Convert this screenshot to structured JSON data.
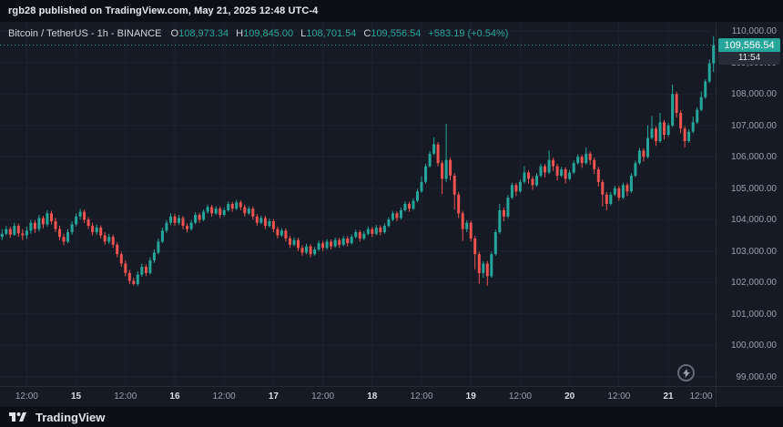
{
  "topbar": {
    "text": "rgb28 published on TradingView.com, May 21, 2025 12:48 UTC-4"
  },
  "legend": {
    "title": "Bitcoin / TetherUS - 1h - BINANCE",
    "o_label": "O",
    "o_value": "108,973.34",
    "h_label": "H",
    "h_value": "109,845.00",
    "l_label": "L",
    "l_value": "108,701.54",
    "c_label": "C",
    "c_value": "109,556.54",
    "change": "+583.19 (+0.54%)"
  },
  "price_badge": {
    "price": "109,556.54",
    "countdown": "11:54"
  },
  "logo": {
    "text": "TradingView"
  },
  "chart_data": {
    "type": "candlestick",
    "symbol": "Bitcoin / TetherUS",
    "interval": "1h",
    "exchange": "BINANCE",
    "last": {
      "open": 108973.34,
      "high": 109845.0,
      "low": 108701.54,
      "close": 109556.54,
      "change": 583.19,
      "change_pct": 0.54
    },
    "y_range": [
      98700,
      110300
    ],
    "colors": {
      "up": "#26a69a",
      "down": "#ef5350",
      "grid": "#1e2330",
      "background": "#151a25",
      "panel": "#0c0f16",
      "text_muted": "#9aa0ab",
      "text_bright": "#dadde2"
    },
    "y_ticks": [
      {
        "value": 110000,
        "label": "110,000.00"
      },
      {
        "value": 109000,
        "label": "109,000.00"
      },
      {
        "value": 108000,
        "label": "108,000.00"
      },
      {
        "value": 107000,
        "label": "107,000.00"
      },
      {
        "value": 106000,
        "label": "106,000.00"
      },
      {
        "value": 105000,
        "label": "105,000.00"
      },
      {
        "value": 104000,
        "label": "104,000.00"
      },
      {
        "value": 103000,
        "label": "103,000.00"
      },
      {
        "value": 102000,
        "label": "102,000.00"
      },
      {
        "value": 101000,
        "label": "101,000.00"
      },
      {
        "value": 100000,
        "label": "100,000.00"
      },
      {
        "value": 99000,
        "label": "99,000.00"
      }
    ],
    "x_ticks": [
      {
        "label": "12:00",
        "i": 6,
        "major": false
      },
      {
        "label": "15",
        "i": 18,
        "major": true
      },
      {
        "label": "12:00",
        "i": 30,
        "major": false
      },
      {
        "label": "16",
        "i": 42,
        "major": true
      },
      {
        "label": "12:00",
        "i": 54,
        "major": false
      },
      {
        "label": "17",
        "i": 66,
        "major": true
      },
      {
        "label": "12:00",
        "i": 78,
        "major": false
      },
      {
        "label": "18",
        "i": 90,
        "major": true
      },
      {
        "label": "12:00",
        "i": 102,
        "major": false
      },
      {
        "label": "19",
        "i": 114,
        "major": true
      },
      {
        "label": "12:00",
        "i": 126,
        "major": false
      },
      {
        "label": "20",
        "i": 138,
        "major": true
      },
      {
        "label": "12:00",
        "i": 150,
        "major": false
      },
      {
        "label": "21",
        "i": 162,
        "major": true
      },
      {
        "label": "12:00",
        "i": 174,
        "major": false
      }
    ],
    "candles": [
      [
        103450,
        103700,
        103350,
        103550
      ],
      [
        103550,
        103800,
        103500,
        103700
      ],
      [
        103700,
        103780,
        103420,
        103520
      ],
      [
        103520,
        103900,
        103480,
        103800
      ],
      [
        103800,
        103880,
        103450,
        103560
      ],
      [
        103560,
        103700,
        103350,
        103500
      ],
      [
        103500,
        103780,
        103380,
        103650
      ],
      [
        103650,
        104000,
        103550,
        103900
      ],
      [
        103900,
        103980,
        103580,
        103700
      ],
      [
        103700,
        104150,
        103620,
        104050
      ],
      [
        104050,
        104120,
        103720,
        103850
      ],
      [
        103850,
        104300,
        103780,
        104200
      ],
      [
        104200,
        104280,
        103850,
        103950
      ],
      [
        103950,
        104050,
        103600,
        103700
      ],
      [
        103700,
        103800,
        103350,
        103450
      ],
      [
        103450,
        103550,
        103180,
        103300
      ],
      [
        103300,
        103700,
        103250,
        103600
      ],
      [
        103600,
        103950,
        103520,
        103850
      ],
      [
        103850,
        104200,
        103780,
        104100
      ],
      [
        104100,
        104350,
        104000,
        104250
      ],
      [
        104250,
        104320,
        103900,
        104000
      ],
      [
        104000,
        104080,
        103700,
        103800
      ],
      [
        103800,
        103900,
        103500,
        103600
      ],
      [
        103600,
        103850,
        103520,
        103750
      ],
      [
        103750,
        103820,
        103400,
        103500
      ],
      [
        103500,
        103600,
        103200,
        103300
      ],
      [
        103300,
        103550,
        103220,
        103450
      ],
      [
        103450,
        103520,
        103100,
        103200
      ],
      [
        103200,
        103280,
        102800,
        102900
      ],
      [
        102900,
        102980,
        102500,
        102600
      ],
      [
        102600,
        102700,
        102200,
        102300
      ],
      [
        102300,
        102400,
        101950,
        102050
      ],
      [
        102050,
        102150,
        101900,
        101950
      ],
      [
        101950,
        102350,
        101880,
        102250
      ],
      [
        102250,
        102600,
        102180,
        102500
      ],
      [
        102500,
        102580,
        102200,
        102300
      ],
      [
        102300,
        102800,
        102250,
        102700
      ],
      [
        102700,
        103050,
        102620,
        102950
      ],
      [
        102950,
        103400,
        102900,
        103300
      ],
      [
        103300,
        103750,
        103250,
        103650
      ],
      [
        103650,
        103980,
        103580,
        103900
      ],
      [
        103900,
        104200,
        103820,
        104100
      ],
      [
        104100,
        104180,
        103800,
        103900
      ],
      [
        103900,
        104150,
        103830,
        104050
      ],
      [
        104050,
        104120,
        103700,
        103800
      ],
      [
        103800,
        103880,
        103600,
        103700
      ],
      [
        103700,
        103980,
        103650,
        103900
      ],
      [
        103900,
        104230,
        103850,
        104150
      ],
      [
        104150,
        104220,
        103900,
        104000
      ],
      [
        104000,
        104330,
        103950,
        104250
      ],
      [
        104250,
        104480,
        104180,
        104400
      ],
      [
        104400,
        104470,
        104100,
        104200
      ],
      [
        104200,
        104430,
        104150,
        104350
      ],
      [
        104350,
        104420,
        104050,
        104150
      ],
      [
        104150,
        104380,
        104100,
        104300
      ],
      [
        104300,
        104580,
        104250,
        104500
      ],
      [
        104500,
        104570,
        104250,
        104350
      ],
      [
        104350,
        104630,
        104300,
        104550
      ],
      [
        104550,
        104620,
        104300,
        104400
      ],
      [
        104400,
        104480,
        104100,
        104200
      ],
      [
        104200,
        104430,
        104150,
        104350
      ],
      [
        104350,
        104420,
        104000,
        104100
      ],
      [
        104100,
        104180,
        103800,
        103900
      ],
      [
        103900,
        104130,
        103850,
        104050
      ],
      [
        104050,
        104120,
        103700,
        103800
      ],
      [
        103800,
        104030,
        103750,
        103950
      ],
      [
        103950,
        104020,
        103600,
        103700
      ],
      [
        103700,
        103780,
        103400,
        103500
      ],
      [
        103500,
        103730,
        103450,
        103650
      ],
      [
        103650,
        103720,
        103300,
        103400
      ],
      [
        103400,
        103480,
        103100,
        103200
      ],
      [
        103200,
        103430,
        103150,
        103350
      ],
      [
        103350,
        103420,
        103000,
        103100
      ],
      [
        103100,
        103180,
        102850,
        102950
      ],
      [
        102950,
        103230,
        102900,
        103150
      ],
      [
        103150,
        103220,
        102800,
        102900
      ],
      [
        102900,
        103130,
        102850,
        103050
      ],
      [
        103050,
        103330,
        103000,
        103250
      ],
      [
        103250,
        103320,
        103000,
        103100
      ],
      [
        103100,
        103380,
        103050,
        103300
      ],
      [
        103300,
        103370,
        103050,
        103150
      ],
      [
        103150,
        103430,
        103100,
        103350
      ],
      [
        103350,
        103420,
        103100,
        103200
      ],
      [
        103200,
        103480,
        103150,
        103400
      ],
      [
        103400,
        103470,
        103150,
        103250
      ],
      [
        103250,
        103530,
        103200,
        103450
      ],
      [
        103450,
        103680,
        103400,
        103600
      ],
      [
        103600,
        103670,
        103300,
        103400
      ],
      [
        103400,
        103630,
        103350,
        103550
      ],
      [
        103550,
        103780,
        103500,
        103700
      ],
      [
        103700,
        103770,
        103450,
        103550
      ],
      [
        103550,
        103830,
        103500,
        103750
      ],
      [
        103750,
        103820,
        103500,
        103600
      ],
      [
        103600,
        103880,
        103550,
        103800
      ],
      [
        103800,
        104080,
        103750,
        104000
      ],
      [
        104000,
        104280,
        103950,
        104200
      ],
      [
        104200,
        104270,
        103950,
        104050
      ],
      [
        104050,
        104380,
        104000,
        104300
      ],
      [
        104300,
        104580,
        104250,
        104500
      ],
      [
        104500,
        104570,
        104250,
        104350
      ],
      [
        104350,
        104680,
        104300,
        104600
      ],
      [
        104600,
        104980,
        104550,
        104900
      ],
      [
        104900,
        105380,
        104850,
        105200
      ],
      [
        105200,
        105780,
        105150,
        105700
      ],
      [
        105700,
        106180,
        105650,
        106100
      ],
      [
        106100,
        106620,
        106050,
        106400
      ],
      [
        106400,
        106470,
        105700,
        105800
      ],
      [
        105800,
        105880,
        104820,
        105300
      ],
      [
        105300,
        107050,
        105200,
        105900
      ],
      [
        105900,
        105970,
        105250,
        105400
      ],
      [
        105400,
        105480,
        104320,
        104800
      ],
      [
        104800,
        104880,
        104050,
        104200
      ],
      [
        104200,
        104280,
        103320,
        103700
      ],
      [
        103700,
        103980,
        103600,
        103900
      ],
      [
        103900,
        103970,
        103300,
        103400
      ],
      [
        103400,
        103480,
        102420,
        102900
      ],
      [
        102900,
        102980,
        101960,
        102300
      ],
      [
        102300,
        102680,
        102150,
        102600
      ],
      [
        102600,
        102680,
        101900,
        102200
      ],
      [
        102200,
        102980,
        102150,
        102900
      ],
      [
        102900,
        103680,
        102850,
        103600
      ],
      [
        103600,
        104500,
        103550,
        104300
      ],
      [
        104300,
        104380,
        103950,
        104100
      ],
      [
        104100,
        104780,
        104050,
        104700
      ],
      [
        104700,
        105180,
        104650,
        105100
      ],
      [
        105100,
        105170,
        104750,
        104900
      ],
      [
        104900,
        105280,
        104850,
        105200
      ],
      [
        105200,
        105700,
        105150,
        105500
      ],
      [
        105500,
        105570,
        105150,
        105300
      ],
      [
        105300,
        105380,
        104950,
        105100
      ],
      [
        105100,
        105480,
        105050,
        105400
      ],
      [
        105400,
        105780,
        105350,
        105700
      ],
      [
        105700,
        105770,
        105350,
        105500
      ],
      [
        105500,
        106200,
        105450,
        105900
      ],
      [
        105900,
        105970,
        105550,
        105700
      ],
      [
        105700,
        105780,
        105250,
        105400
      ],
      [
        105400,
        105680,
        105350,
        105600
      ],
      [
        105600,
        105670,
        105150,
        105300
      ],
      [
        105300,
        105580,
        105250,
        105500
      ],
      [
        105500,
        105880,
        105450,
        105800
      ],
      [
        105800,
        106080,
        105750,
        106000
      ],
      [
        106000,
        106070,
        105650,
        105800
      ],
      [
        105800,
        106300,
        105750,
        106100
      ],
      [
        106100,
        106170,
        105750,
        105900
      ],
      [
        105900,
        105970,
        105450,
        105600
      ],
      [
        105600,
        105680,
        105050,
        105200
      ],
      [
        105200,
        105280,
        104420,
        104800
      ],
      [
        104800,
        104880,
        104300,
        104500
      ],
      [
        104500,
        104880,
        104450,
        104800
      ],
      [
        104800,
        105080,
        104750,
        105000
      ],
      [
        105000,
        105070,
        104600,
        104700
      ],
      [
        104700,
        105180,
        104650,
        105100
      ],
      [
        105100,
        105170,
        104750,
        104900
      ],
      [
        104900,
        105480,
        104850,
        105400
      ],
      [
        105400,
        105880,
        105350,
        105800
      ],
      [
        105800,
        106280,
        105750,
        106200
      ],
      [
        106200,
        106270,
        105850,
        106000
      ],
      [
        106000,
        107000,
        105950,
        106600
      ],
      [
        106600,
        107300,
        106550,
        106900
      ],
      [
        106900,
        106970,
        106350,
        106500
      ],
      [
        106500,
        107400,
        106450,
        107100
      ],
      [
        107100,
        107170,
        106550,
        106700
      ],
      [
        106700,
        107080,
        106650,
        107000
      ],
      [
        107000,
        108300,
        106950,
        108000
      ],
      [
        108000,
        108080,
        107250,
        107400
      ],
      [
        107400,
        107480,
        106750,
        106900
      ],
      [
        106900,
        106980,
        106300,
        106500
      ],
      [
        106500,
        106880,
        106450,
        106800
      ],
      [
        106800,
        107280,
        106750,
        107100
      ],
      [
        107100,
        107580,
        107050,
        107500
      ],
      [
        107500,
        108080,
        107450,
        107900
      ],
      [
        107900,
        108480,
        107850,
        108400
      ],
      [
        108400,
        109100,
        108350,
        108973.34
      ],
      [
        108973.34,
        109845,
        108701.54,
        109556.54
      ]
    ]
  }
}
